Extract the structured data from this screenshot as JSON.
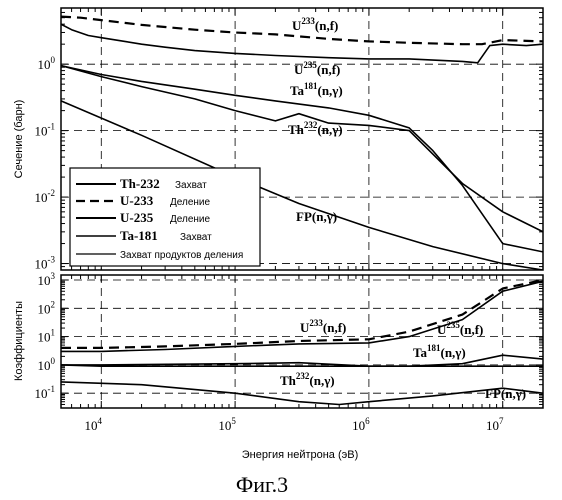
{
  "chart_data": [
    {
      "type": "line",
      "xscale": "log",
      "yscale": "log",
      "xlim": [
        5000,
        20000000
      ],
      "ylim": [
        0.0008,
        7
      ],
      "ylabel": "Сечение (барн)",
      "xticks": [
        "10^4",
        "10^5",
        "10^6",
        "10^7"
      ],
      "yticks": [
        "10^-3",
        "10^-2",
        "10^-1",
        "10^0"
      ],
      "grid": "dashed",
      "legend_position": "bottom-left",
      "legend": [
        {
          "isotope": "Th-232",
          "reaction": "Захват",
          "style": "solid"
        },
        {
          "isotope": "U-233",
          "reaction": "Деление",
          "style": "dashed"
        },
        {
          "isotope": "U-235",
          "reaction": "Деление",
          "style": "solid"
        },
        {
          "isotope": "Ta-181",
          "reaction": "Захват",
          "style": "solid"
        },
        {
          "isotope": "",
          "reaction": "Захват продуктов деления",
          "style": "solid"
        }
      ],
      "annotations": [
        {
          "base": "U",
          "sup": "233",
          "tail": "(n,f)"
        },
        {
          "base": "U",
          "sup": "235",
          "tail": "(n,f)"
        },
        {
          "base": "Ta",
          "sup": "181",
          "tail": "(n,γ)"
        },
        {
          "base": "Th",
          "sup": "232",
          "tail": "(n,γ)"
        },
        {
          "base": "FP(n,γ)",
          "sup": "",
          "tail": ""
        }
      ],
      "series": [
        {
          "name": "U-233 Деление",
          "style": "dashed",
          "x": [
            5000,
            7000,
            10000,
            20000,
            50000,
            100000,
            200000,
            500000,
            1000000,
            2000000,
            5000000,
            7000000,
            10000000,
            20000000
          ],
          "y": [
            5.2,
            5.0,
            4.6,
            3.9,
            3.3,
            3.0,
            2.8,
            2.4,
            2.2,
            2.1,
            2.0,
            2.0,
            2.3,
            2.2
          ]
        },
        {
          "name": "U-235 Деление",
          "style": "solid",
          "x": [
            5000,
            6000,
            8000,
            10000,
            15000,
            20000,
            30000,
            50000,
            100000,
            200000,
            500000,
            1000000,
            2000000,
            5000000,
            6500000,
            8000000,
            10000000,
            15000000,
            20000000
          ],
          "y": [
            4.0,
            3.3,
            2.7,
            2.5,
            2.2,
            2.0,
            1.8,
            1.6,
            1.45,
            1.35,
            1.25,
            1.2,
            1.2,
            1.1,
            1.05,
            1.9,
            2.0,
            1.9,
            2.0
          ]
        },
        {
          "name": "Ta-181 Захват",
          "style": "solid",
          "x": [
            5000,
            10000,
            20000,
            50000,
            100000,
            200000,
            500000,
            1000000,
            2000000,
            3000000,
            5000000,
            10000000,
            20000000
          ],
          "y": [
            0.95,
            0.7,
            0.55,
            0.42,
            0.34,
            0.28,
            0.22,
            0.17,
            0.11,
            0.05,
            0.015,
            0.002,
            0.0015
          ]
        },
        {
          "name": "Th-232 Захват",
          "style": "solid",
          "x": [
            5000,
            10000,
            20000,
            50000,
            100000,
            200000,
            300000,
            500000,
            1000000,
            2000000,
            5000000,
            10000000,
            20000000
          ],
          "y": [
            0.95,
            0.65,
            0.46,
            0.3,
            0.2,
            0.14,
            0.18,
            0.13,
            0.12,
            0.1,
            0.016,
            0.006,
            0.003
          ]
        },
        {
          "name": "Захват продуктов деления",
          "style": "solid",
          "x": [
            5000,
            20000,
            100000,
            300000,
            1000000,
            3000000,
            10000000,
            20000000
          ],
          "y": [
            0.28,
            0.085,
            0.02,
            0.008,
            0.0035,
            0.0018,
            0.001,
            0.0008
          ]
        }
      ]
    },
    {
      "type": "line",
      "xscale": "log",
      "yscale": "log",
      "xlim": [
        5000,
        20000000
      ],
      "ylim": [
        0.03,
        1500
      ],
      "xlabel": "Энергия нейтрона (эВ)",
      "ylabel": "Коэффициенты",
      "xticks": [
        "10^4",
        "10^5",
        "10^6",
        "10^7"
      ],
      "yticks": [
        "10^-1",
        "10^0",
        "10^1",
        "10^2",
        "10^3"
      ],
      "grid": "dashed",
      "annotations": [
        {
          "base": "U",
          "sup": "233",
          "tail": "(n,f)"
        },
        {
          "base": "U",
          "sup": "235",
          "tail": "(n,f)"
        },
        {
          "base": "Ta",
          "sup": "181",
          "tail": "(n,γ)"
        },
        {
          "base": "Th",
          "sup": "232",
          "tail": "(n,γ)"
        },
        {
          "base": "FP(n,γ)",
          "sup": "",
          "tail": ""
        }
      ],
      "series": [
        {
          "name": "U-233 Деление",
          "style": "dashed",
          "x": [
            5000,
            10000,
            30000,
            100000,
            300000,
            1000000,
            2000000,
            5000000,
            10000000,
            20000000
          ],
          "y": [
            4,
            4,
            4.5,
            5.5,
            7,
            8,
            15,
            60,
            500,
            1000
          ]
        },
        {
          "name": "U-235 Деление",
          "style": "solid",
          "x": [
            5000,
            10000,
            30000,
            100000,
            300000,
            1000000,
            2000000,
            5000000,
            10000000,
            20000000
          ],
          "y": [
            3,
            3,
            3.5,
            4.5,
            5.5,
            6,
            10,
            40,
            400,
            900
          ]
        },
        {
          "name": "Ta-181 Захват",
          "style": "solid",
          "x": [
            5000,
            10000,
            100000,
            300000,
            1000000,
            2000000,
            5000000,
            10000000,
            20000000
          ],
          "y": [
            1.0,
            1.0,
            1.1,
            1.2,
            0.9,
            0.9,
            1.1,
            2.2,
            1.6
          ]
        },
        {
          "name": "Th-232 Захват",
          "style": "solid",
          "x": [
            5000,
            10000,
            100000,
            300000,
            1000000,
            5000000,
            10000000,
            20000000
          ],
          "y": [
            1.0,
            0.9,
            0.9,
            0.9,
            0.9,
            0.9,
            0.9,
            0.9
          ]
        },
        {
          "name": "Захват продуктов деления",
          "style": "solid",
          "x": [
            5000,
            20000,
            100000,
            300000,
            600000,
            1000000,
            3000000,
            10000000,
            20000000
          ],
          "y": [
            0.25,
            0.2,
            0.1,
            0.05,
            0.04,
            0.05,
            0.08,
            0.15,
            0.1
          ]
        }
      ]
    }
  ],
  "caption": "Фиг.3"
}
